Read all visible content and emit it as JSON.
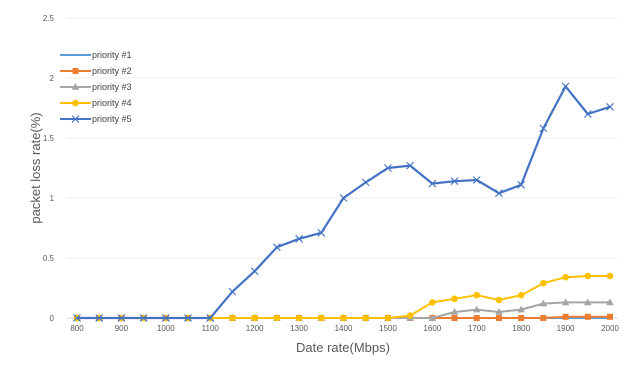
{
  "chart_data": {
    "type": "line",
    "title": "",
    "xlabel": "Date rate(Mbps)",
    "ylabel": "packet loss rate(%)",
    "ylim": [
      0,
      2.5
    ],
    "yticks": [
      0,
      0.5,
      1,
      1.5,
      2,
      2.5
    ],
    "xlim": [
      800,
      2000
    ],
    "xticks": [
      800,
      900,
      1000,
      1100,
      1200,
      1300,
      1400,
      1500,
      1600,
      1700,
      1800,
      1900,
      2000
    ],
    "legend_position": "top-left",
    "grid": "horizontal",
    "x": [
      800,
      850,
      900,
      950,
      1000,
      1050,
      1100,
      1150,
      1200,
      1250,
      1300,
      1350,
      1400,
      1450,
      1500,
      1550,
      1600,
      1650,
      1700,
      1750,
      1800,
      1850,
      1900,
      1950,
      2000
    ],
    "series": [
      {
        "name": "priority #1",
        "color": "#5b9bd5",
        "marker": "none",
        "values": [
          0,
          0,
          0,
          0,
          0,
          0,
          0,
          0,
          0,
          0,
          0,
          0,
          0,
          0,
          0,
          0,
          0,
          0,
          0,
          0,
          0,
          0,
          0,
          0,
          0
        ]
      },
      {
        "name": "priority #2",
        "color": "#ed7d31",
        "marker": "square",
        "values": [
          0,
          0,
          0,
          0,
          0,
          0,
          0,
          0,
          0,
          0,
          0,
          0,
          0,
          0,
          0,
          0,
          0,
          0,
          0,
          0,
          0,
          0,
          0.01,
          0.01,
          0.01
        ]
      },
      {
        "name": "priority #3",
        "color": "#a5a5a5",
        "marker": "triangle",
        "values": [
          0,
          0,
          0,
          0,
          0,
          0,
          0,
          0,
          0,
          0,
          0,
          0,
          0,
          0,
          0,
          0,
          0,
          0.05,
          0.07,
          0.05,
          0.07,
          0.12,
          0.13,
          0.13,
          0.13
        ]
      },
      {
        "name": "priority #4",
        "color": "#ffc000",
        "marker": "circle",
        "values": [
          0,
          0,
          0,
          0,
          0,
          0,
          0,
          0,
          0,
          0,
          0,
          0,
          0,
          0,
          0,
          0.02,
          0.13,
          0.16,
          0.19,
          0.15,
          0.19,
          0.29,
          0.34,
          0.35,
          0.35
        ]
      },
      {
        "name": "priority #5",
        "color": "#4472c4",
        "marker": "x",
        "values": [
          0,
          0,
          0,
          0,
          0,
          0,
          0,
          0.22,
          0.39,
          0.59,
          0.66,
          0.71,
          1.0,
          1.13,
          1.25,
          1.27,
          1.12,
          1.14,
          1.15,
          1.04,
          1.11,
          1.58,
          1.93,
          1.7,
          1.76
        ]
      }
    ]
  }
}
